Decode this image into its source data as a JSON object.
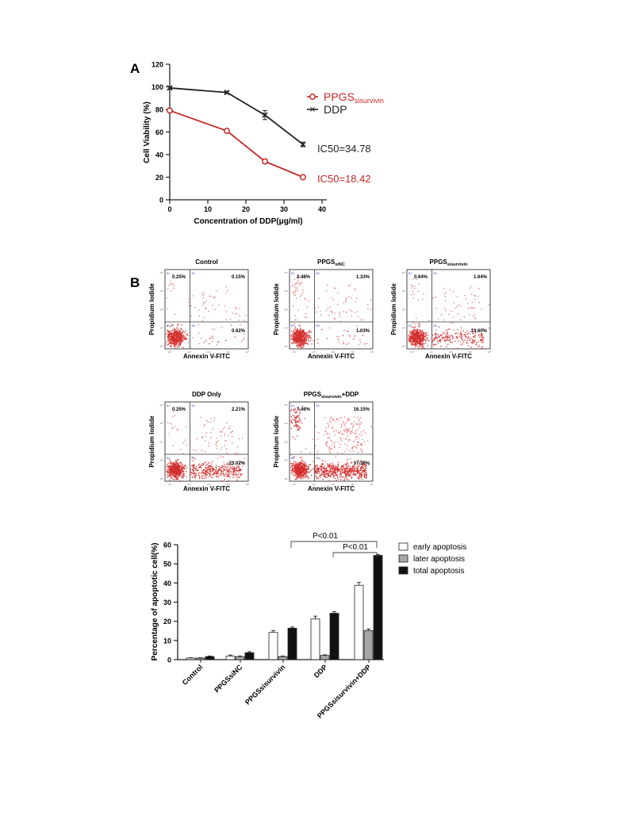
{
  "panel_a": {
    "label": "A",
    "chart_data": {
      "type": "line",
      "xlabel": "Concentration of DDP(μg/ml)",
      "ylabel": "Cell Viability (%)",
      "xlim": [
        0,
        40
      ],
      "ylim": [
        0,
        120
      ],
      "xticks": [
        "0",
        "10",
        "20",
        "30",
        "40"
      ],
      "yticks": [
        "0",
        "20",
        "40",
        "60",
        "80",
        "100",
        "120"
      ],
      "x": [
        0,
        15,
        25,
        35
      ],
      "series": [
        {
          "name": "PPGSsisurvivin",
          "name_main": "PPGS",
          "name_sub": "sisurvivin",
          "color": "#c62828",
          "marker": "circle",
          "values": [
            79,
            61,
            34,
            20
          ],
          "errors": [
            1.0,
            1.0,
            2.0,
            1.0
          ]
        },
        {
          "name": "DDP",
          "name_main": "DDP",
          "name_sub": "",
          "color": "#222222",
          "marker": "x",
          "values": [
            99,
            95,
            75,
            49
          ],
          "errors": [
            1.0,
            1.0,
            4.0,
            2.0
          ]
        }
      ],
      "annotations": [
        {
          "text": "IC50=34.78",
          "color": "#222222"
        },
        {
          "text": "IC50=18.42",
          "color": "#c62828"
        }
      ],
      "legend_position": "right",
      "grid": false
    }
  },
  "panel_b": {
    "label": "B",
    "flow_common": {
      "xlabel": "Annexin V-FITC",
      "ylabel": "Propidium Iodide",
      "quadrant_labels": [
        "B1",
        "B2",
        "B3",
        "B4"
      ]
    },
    "flow_plots": [
      {
        "title_main": "Control",
        "title_sub": "",
        "title_suffix": "",
        "ul": "0.25%",
        "ur": "0.15%",
        "lr": "0.62%",
        "ll": ""
      },
      {
        "title_main": "PPGS",
        "title_sub": "siNC",
        "title_suffix": "",
        "ul": "2.48%",
        "ur": "1.33%",
        "lr": "1.03%",
        "ll": ""
      },
      {
        "title_main": "PPGS",
        "title_sub": "sisurvivin",
        "title_suffix": "",
        "ul": "0.64%",
        "ur": "1.64%",
        "lr": "13.60%",
        "ll": ""
      },
      {
        "title_main": "DDP Only",
        "title_sub": "",
        "title_suffix": "",
        "ul": "0.25%",
        "ur": "2.21%",
        "lr": "23.02%",
        "ll": ""
      },
      {
        "title_main": "PPGS",
        "title_sub": "sisurvivin",
        "title_suffix": "+DDP",
        "ul": "7.46%",
        "ur": "16.15%",
        "lr": "37.39%",
        "ll": ""
      }
    ]
  },
  "bar_chart": {
    "chart_data": {
      "type": "bar",
      "categories": [
        "Control",
        "PPGSsiNC",
        "PPGSsisurvivin",
        "DDP",
        "PPGSsisurvivin+DDP"
      ],
      "ylabel": "Percentage of apoptotic cell(%)",
      "ylim": [
        0,
        60
      ],
      "yticks": [
        "0",
        "10",
        "20",
        "30",
        "40",
        "50",
        "60"
      ],
      "series": [
        {
          "name": "early apoptosis",
          "fill": "#ffffff",
          "values": [
            0.8,
            1.8,
            14.2,
            21.2,
            38.8
          ],
          "errors": [
            0.2,
            0.6,
            1.0,
            1.5,
            1.5
          ]
        },
        {
          "name": "later apoptosis",
          "fill": "#a6a6a6",
          "values": [
            0.8,
            1.6,
            1.6,
            2.2,
            15.2
          ],
          "errors": [
            0.2,
            0.3,
            0.3,
            0.3,
            0.8
          ]
        },
        {
          "name": "total apoptosis",
          "fill": "#111111",
          "values": [
            1.6,
            3.6,
            16.4,
            24.2,
            54.4
          ],
          "errors": [
            0.3,
            0.6,
            0.6,
            0.8,
            0.5
          ]
        }
      ],
      "significance": [
        "P<0.01",
        "P<0.01"
      ],
      "legend_position": "top-right",
      "grid": false
    }
  }
}
